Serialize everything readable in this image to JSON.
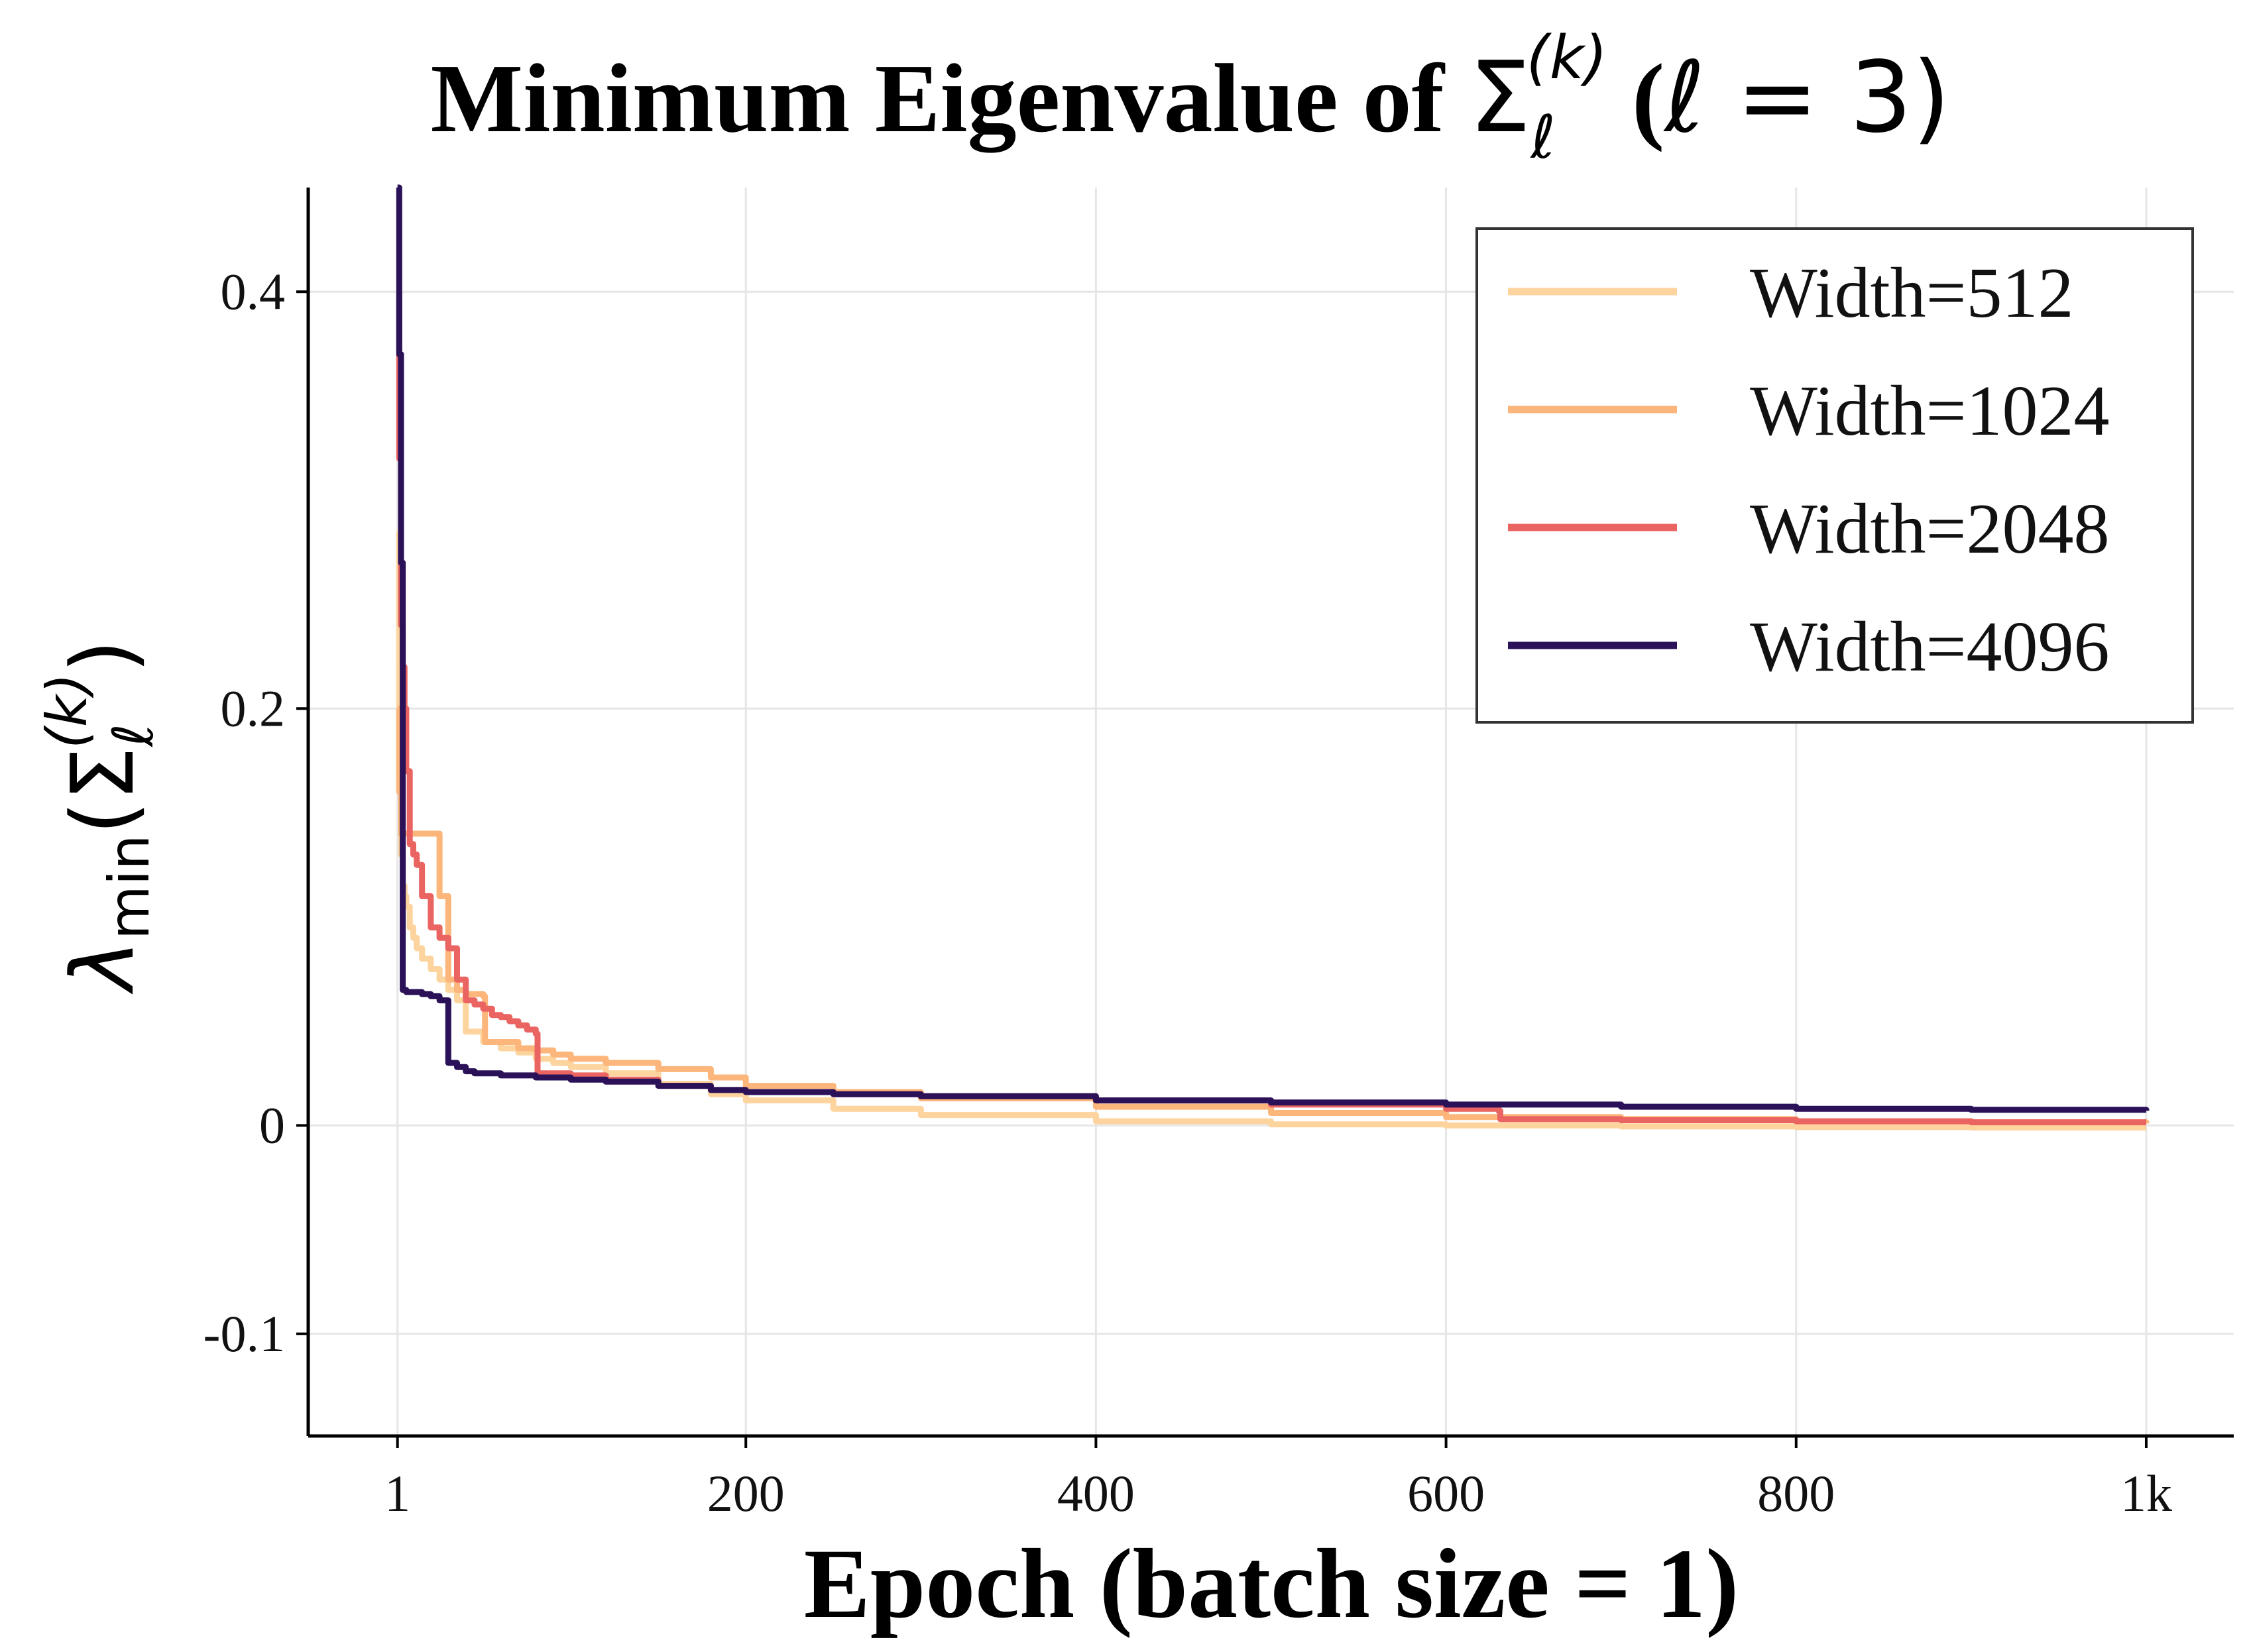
{
  "chart_data": {
    "type": "line",
    "title": "Minimum Eigenvalue of Σ_ℓ^(k) (ℓ = 3)",
    "title_parts": {
      "prefix": "Minimum Eigenvalue of ",
      "symbol": "Σ",
      "subscript": "ℓ",
      "superscript": "(k)",
      "suffix_open": " (",
      "ell": "ℓ",
      "suffix_close": " = 3)"
    },
    "xlabel": "Epoch (batch size = 1)",
    "ylabel": "λmin(Σℓ(k))",
    "ylabel_parts": {
      "lambda": "λ",
      "sub": "min",
      "open": "(",
      "symbol": "Σ",
      "subscript": "ℓ",
      "superscript": "(k)",
      "close": ")"
    },
    "xlim": [
      -50,
      1050
    ],
    "ylim": [
      -0.149,
      0.45
    ],
    "xticks": [
      1,
      200,
      400,
      600,
      800,
      1000
    ],
    "xtick_labels": [
      "1",
      "200",
      "400",
      "600",
      "800",
      "1k"
    ],
    "yticks": [
      -0.1,
      0,
      0.2,
      0.4
    ],
    "ytick_labels": [
      "-0.1",
      "0",
      "0.2",
      "0.4"
    ],
    "grid": true,
    "legend_position": "top-right",
    "series": [
      {
        "name": "Width=512",
        "color": "#fdd49e",
        "x": [
          1,
          2,
          3,
          4,
          5,
          6,
          8,
          10,
          12,
          15,
          20,
          25,
          30,
          35,
          40,
          50,
          60,
          70,
          80,
          90,
          100,
          120,
          150,
          180,
          200,
          250,
          300,
          400,
          500,
          600,
          700,
          800,
          900,
          1000
        ],
        "y": [
          0.285,
          0.17,
          0.13,
          0.115,
          0.11,
          0.105,
          0.095,
          0.09,
          0.085,
          0.08,
          0.075,
          0.07,
          0.065,
          0.06,
          0.045,
          0.04,
          0.037,
          0.035,
          0.032,
          0.03,
          0.028,
          0.025,
          0.02,
          0.015,
          0.012,
          0.008,
          0.005,
          0.002,
          0.0005,
          0.0,
          -0.0005,
          -0.0008,
          -0.001,
          -0.001
        ]
      },
      {
        "name": "Width=1024",
        "color": "#fcb57a",
        "x": [
          1,
          2,
          3,
          4,
          5,
          6,
          8,
          10,
          12,
          15,
          20,
          25,
          30,
          35,
          40,
          50,
          51,
          60,
          70,
          80,
          90,
          100,
          120,
          150,
          180,
          200,
          250,
          300,
          400,
          500,
          600,
          700,
          800,
          900,
          1000
        ],
        "y": [
          0.2,
          0.16,
          0.14,
          0.14,
          0.14,
          0.14,
          0.14,
          0.14,
          0.14,
          0.14,
          0.14,
          0.11,
          0.07,
          0.065,
          0.063,
          0.062,
          0.04,
          0.04,
          0.037,
          0.036,
          0.034,
          0.032,
          0.03,
          0.027,
          0.023,
          0.019,
          0.016,
          0.013,
          0.009,
          0.006,
          0.004,
          0.003,
          0.002,
          0.0015,
          0.001
        ]
      },
      {
        "name": "Width=2048",
        "color": "#ea6461",
        "x": [
          1,
          2,
          3,
          4,
          5,
          6,
          8,
          10,
          12,
          15,
          20,
          25,
          30,
          35,
          40,
          45,
          50,
          55,
          60,
          65,
          70,
          75,
          80,
          81,
          90,
          100,
          120,
          150,
          180,
          200,
          250,
          300,
          400,
          500,
          600,
          630,
          631,
          700,
          800,
          900,
          1000
        ],
        "y": [
          0.4,
          0.32,
          0.24,
          0.22,
          0.2,
          0.17,
          0.135,
          0.13,
          0.125,
          0.11,
          0.095,
          0.09,
          0.085,
          0.07,
          0.06,
          0.058,
          0.056,
          0.053,
          0.052,
          0.05,
          0.048,
          0.046,
          0.044,
          0.025,
          0.025,
          0.024,
          0.022,
          0.019,
          0.017,
          0.016,
          0.015,
          0.014,
          0.012,
          0.01,
          0.008,
          0.007,
          0.003,
          0.0025,
          0.002,
          0.0015,
          0.0015
        ]
      },
      {
        "name": "Width=4096",
        "color": "#2a1158",
        "x": [
          1,
          2,
          3,
          4,
          5,
          6,
          8,
          10,
          15,
          20,
          25,
          30,
          35,
          40,
          45,
          50,
          60,
          70,
          80,
          90,
          100,
          120,
          150,
          180,
          200,
          250,
          300,
          400,
          500,
          600,
          700,
          800,
          900,
          1000
        ],
        "y": [
          0.45,
          0.37,
          0.27,
          0.065,
          0.065,
          0.064,
          0.064,
          0.064,
          0.063,
          0.062,
          0.06,
          0.03,
          0.028,
          0.026,
          0.025,
          0.025,
          0.024,
          0.024,
          0.023,
          0.023,
          0.022,
          0.021,
          0.019,
          0.017,
          0.016,
          0.015,
          0.014,
          0.012,
          0.011,
          0.01,
          0.009,
          0.008,
          0.0075,
          0.007
        ]
      }
    ]
  }
}
